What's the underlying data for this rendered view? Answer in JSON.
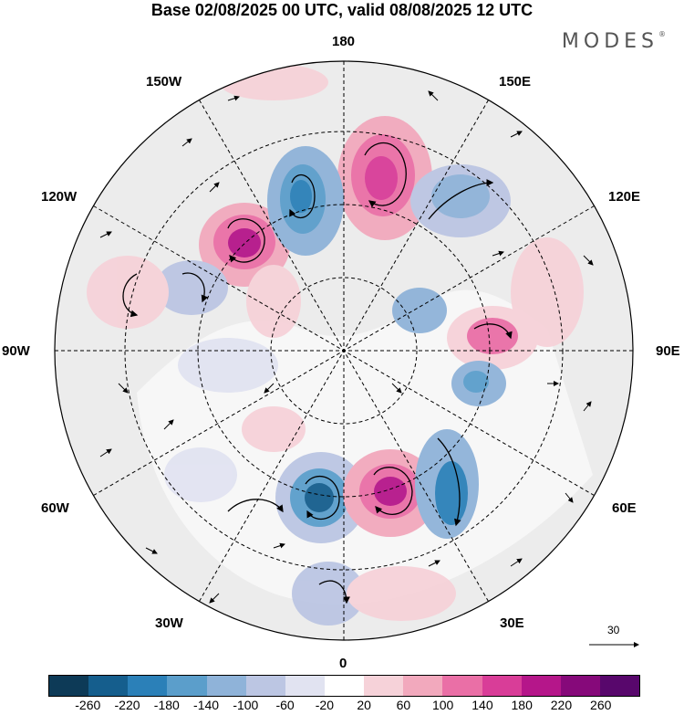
{
  "header": {
    "title": "Base 02/08/2025 00 UTC, valid 08/08/2025 12 UTC",
    "brand": "MODES"
  },
  "map": {
    "longitude_labels": {
      "lon_180": "180",
      "lon_150W": "150W",
      "lon_150E": "150E",
      "lon_120W": "120W",
      "lon_120E": "120E",
      "lon_90W": "90W",
      "lon_90E": "90E",
      "lon_60W": "60W",
      "lon_60E": "60E",
      "lon_30W": "30W",
      "lon_30E": "30E",
      "lon_0": "0"
    },
    "reference_vector_label": "30"
  },
  "colorbar": {
    "ticks": [
      "-260",
      "-220",
      "-180",
      "-140",
      "-100",
      "-60",
      "-20",
      "20",
      "60",
      "100",
      "140",
      "180",
      "220",
      "260"
    ],
    "colors": [
      "#0d3a57",
      "#155e8d",
      "#2b80b8",
      "#5b9ecb",
      "#8fb3d9",
      "#bcc6e3",
      "#e1e3f1",
      "#ffffff",
      "#f6d2d9",
      "#f2a9bd",
      "#ea6fa6",
      "#d93d98",
      "#b5168a",
      "#86097a",
      "#58076c"
    ]
  }
}
